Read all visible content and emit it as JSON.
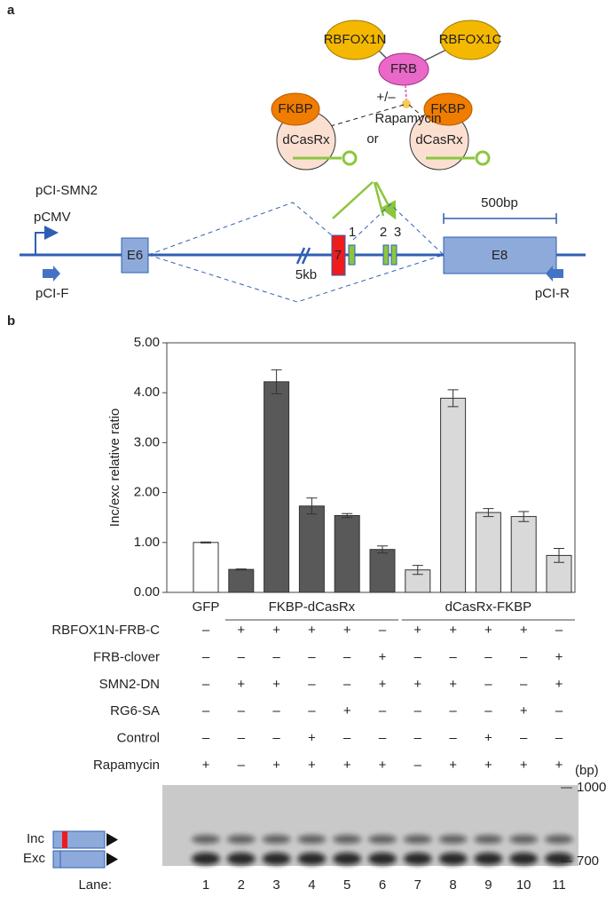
{
  "panel_labels": [
    "a",
    "b"
  ],
  "diagram": {
    "proteins": {
      "rbfox1n": "RBFOX1N",
      "frb": "FRB",
      "rbfox1c": "RBFOX1C",
      "plus_minus": "+/–",
      "rapamycin": "Rapamycin",
      "fkbp_left": "FKBP",
      "fkbp_right": "FKBP",
      "dcasrx_left": "dCasRx",
      "dcasrx_right": "dCasRx",
      "or": "or"
    },
    "construct": "pCI-SMN2",
    "promoter": "pCMV",
    "exon6": "E6",
    "intron_length": "5kb",
    "exon7": "7",
    "sites": [
      "1",
      "2",
      "3"
    ],
    "exon8": "E8",
    "scale": "500bp",
    "primer_forward": "pCI-F",
    "primer_reverse": "pCI-R"
  },
  "chart_data": {
    "type": "bar",
    "y_label": "Inc/exc relative ratio",
    "group_labels": [
      "GFP",
      "FKBP-dCasRx",
      "dCasRx-FKBP"
    ],
    "values": [
      1.0,
      0.46,
      4.22,
      1.73,
      1.54,
      0.86,
      0.45,
      3.89,
      1.6,
      1.52,
      0.74
    ],
    "errors": [
      0.01,
      0.01,
      0.24,
      0.16,
      0.04,
      0.07,
      0.09,
      0.17,
      0.08,
      0.1,
      0.14
    ],
    "colors": [
      "#ffffff",
      "#595959",
      "#595959",
      "#595959",
      "#595959",
      "#595959",
      "#d9d9d9",
      "#d9d9d9",
      "#d9d9d9",
      "#d9d9d9",
      "#d9d9d9"
    ],
    "ylim": [
      0,
      5
    ],
    "yticks": [
      {
        "value": 0,
        "label": "0.00"
      },
      {
        "value": 1,
        "label": "1.00"
      },
      {
        "value": 2,
        "label": "2.00"
      },
      {
        "value": 3,
        "label": "3.00"
      },
      {
        "value": 4,
        "label": "4.00"
      },
      {
        "value": 5,
        "label": "5.00"
      }
    ]
  },
  "table": {
    "rows": [
      {
        "label": "RBFOX1N-FRB-C",
        "cells": [
          "–",
          "+",
          "+",
          "+",
          "+",
          "–",
          "+",
          "+",
          "+",
          "+",
          "–"
        ]
      },
      {
        "label": "FRB-clover",
        "cells": [
          "–",
          "–",
          "–",
          "–",
          "–",
          "+",
          "–",
          "–",
          "–",
          "–",
          "+"
        ]
      },
      {
        "label": "SMN2-DN",
        "cells": [
          "–",
          "+",
          "+",
          "–",
          "–",
          "+",
          "+",
          "+",
          "–",
          "–",
          "+"
        ]
      },
      {
        "label": "RG6-SA",
        "cells": [
          "–",
          "–",
          "–",
          "–",
          "+",
          "–",
          "–",
          "–",
          "–",
          "+",
          "–"
        ]
      },
      {
        "label": "Control",
        "cells": [
          "–",
          "–",
          "–",
          "+",
          "–",
          "–",
          "–",
          "–",
          "+",
          "–",
          "–"
        ]
      },
      {
        "label": "Rapamycin",
        "cells": [
          "+",
          "–",
          "+",
          "+",
          "+",
          "+",
          "–",
          "+",
          "+",
          "+",
          "+"
        ]
      }
    ]
  },
  "gel": {
    "unit": "(bp)",
    "marker_high": "1000",
    "marker_low": "700",
    "inc": "Inc",
    "exc": "Exc",
    "lane_title": "Lane:",
    "lanes": [
      "1",
      "2",
      "3",
      "4",
      "5",
      "6",
      "7",
      "8",
      "9",
      "10",
      "11"
    ]
  }
}
